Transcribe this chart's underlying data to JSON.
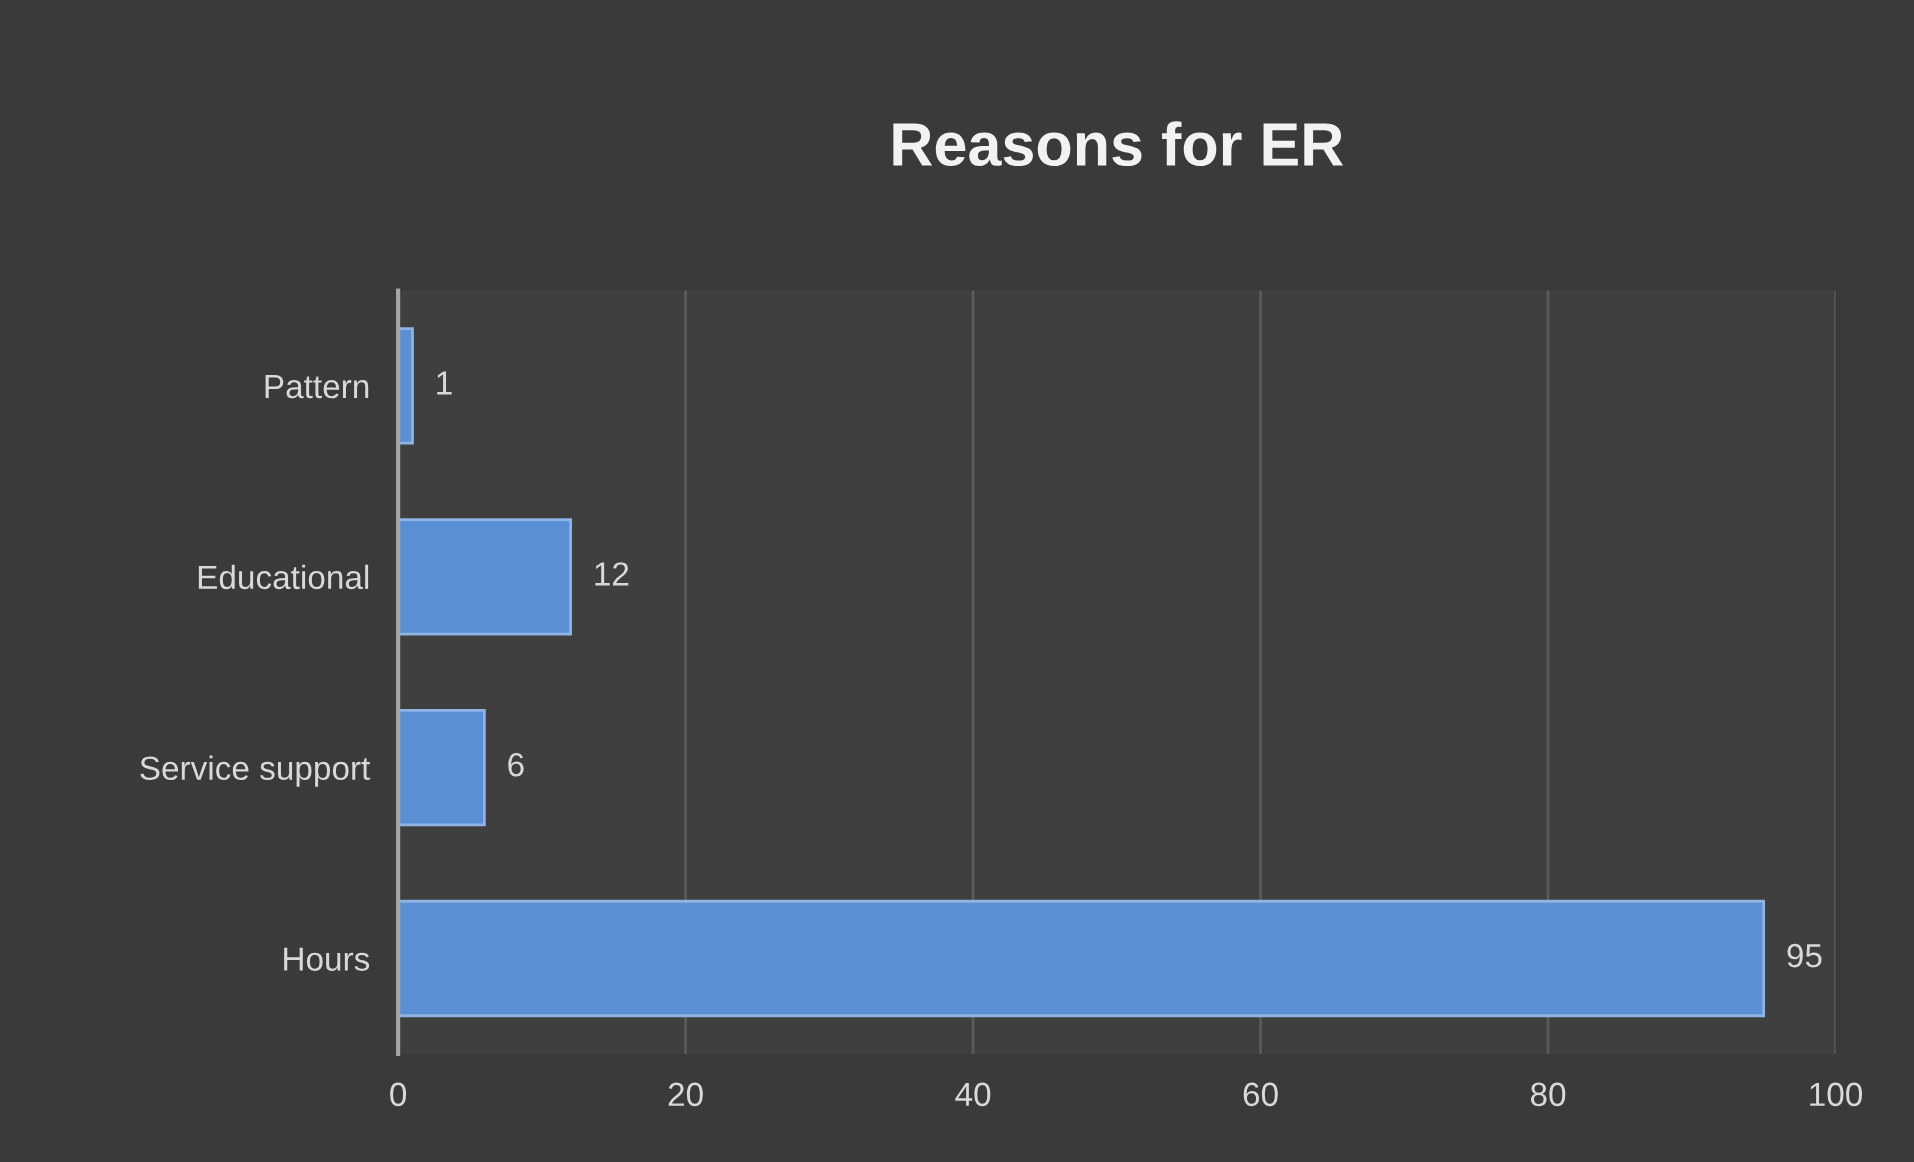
{
  "chart_data": {
    "type": "bar",
    "orientation": "horizontal",
    "title": "Reasons for ER",
    "categories": [
      "Pattern",
      "Educational",
      "Service support",
      "Hours"
    ],
    "values": [
      1,
      12,
      6,
      95
    ],
    "color": "#5b8fd4",
    "xlim": [
      0,
      100
    ],
    "xticks": [
      0,
      20,
      40,
      60,
      80,
      100
    ],
    "grid": "x",
    "data_labels": true
  }
}
